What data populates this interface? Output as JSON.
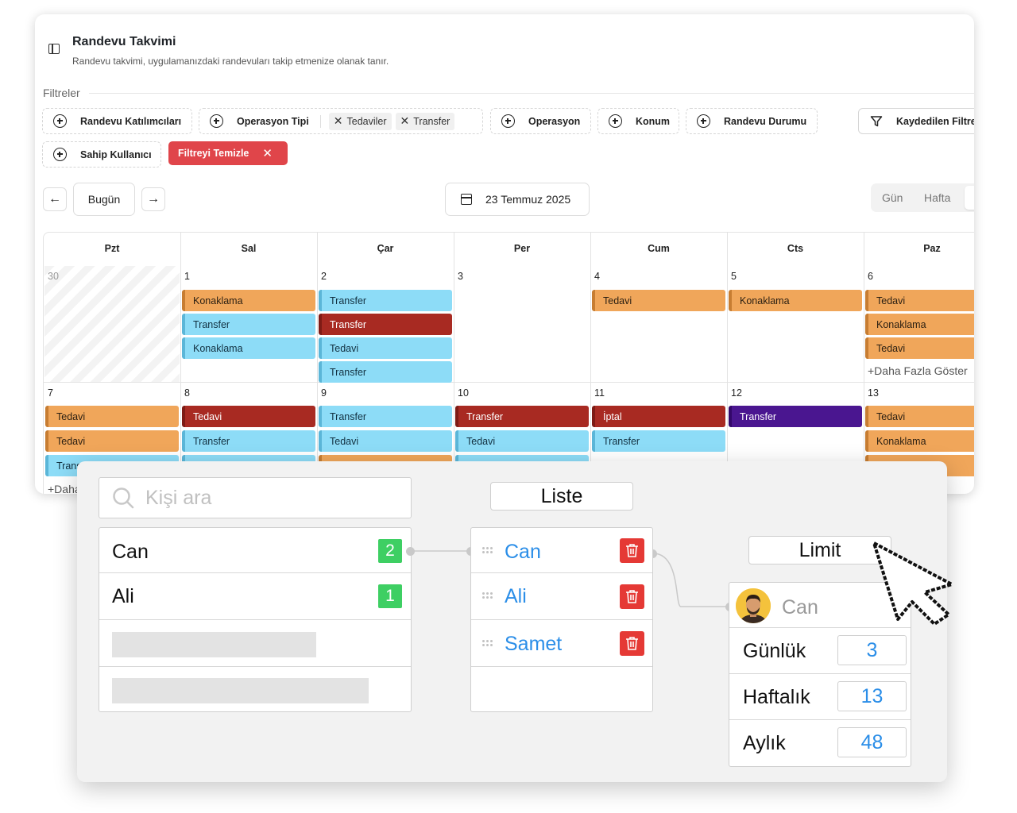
{
  "calendar": {
    "title": "Randevu Takvimi",
    "subtitle": "Randevu takvimi, uygulamanızdaki randevuları takip etmenize olanak tanır.",
    "filters_label": "Filtreler",
    "filters": {
      "participants": "Randevu Katılımcıları",
      "operation_type": "Operasyon Tipi",
      "operation_type_tags": [
        "Tedaviler",
        "Transfer"
      ],
      "operation": "Operasyon",
      "location": "Konum",
      "status": "Randevu Durumu",
      "saved_filters": "Kaydedilen Filtreler",
      "owner": "Sahip Kullanıcı",
      "clear": "Filtreyi Temizle"
    },
    "toolbar": {
      "today": "Bugün",
      "date": "23 Temmuz 2025",
      "views": [
        "Gün",
        "Hafta"
      ]
    },
    "weekdays": [
      "Pzt",
      "Sal",
      "Çar",
      "Per",
      "Cum",
      "Cts",
      "Paz"
    ],
    "weeks": [
      {
        "days": [
          {
            "num": "30",
            "muted": true,
            "events": []
          },
          {
            "num": "1",
            "events": [
              {
                "label": "Konaklama",
                "kind": "orange"
              },
              {
                "label": "Transfer",
                "kind": "blue"
              },
              {
                "label": "Konaklama",
                "kind": "blue"
              }
            ]
          },
          {
            "num": "2",
            "events": [
              {
                "label": "Transfer",
                "kind": "blue"
              },
              {
                "label": "Transfer",
                "kind": "red"
              },
              {
                "label": "Tedavi",
                "kind": "blue"
              },
              {
                "label": "Transfer",
                "kind": "blue"
              }
            ]
          },
          {
            "num": "3",
            "events": []
          },
          {
            "num": "4",
            "events": [
              {
                "label": "Tedavi",
                "kind": "orange"
              }
            ]
          },
          {
            "num": "5",
            "events": [
              {
                "label": "Konaklama",
                "kind": "orange"
              }
            ]
          },
          {
            "num": "6",
            "events": [
              {
                "label": "Tedavi",
                "kind": "orange"
              },
              {
                "label": "Konaklama",
                "kind": "orange"
              },
              {
                "label": "Tedavi",
                "kind": "orange"
              }
            ],
            "more": "+Daha Fazla Göster"
          }
        ]
      },
      {
        "days": [
          {
            "num": "7",
            "events": [
              {
                "label": "Tedavi",
                "kind": "orange"
              },
              {
                "label": "Tedavi",
                "kind": "orange"
              },
              {
                "label": "Trans",
                "kind": "blue"
              }
            ],
            "more": "+Daha"
          },
          {
            "num": "8",
            "events": [
              {
                "label": "Tedavi",
                "kind": "red"
              },
              {
                "label": "Transfer",
                "kind": "blue"
              },
              {
                "label": "",
                "kind": "blue"
              }
            ]
          },
          {
            "num": "9",
            "events": [
              {
                "label": "Transfer",
                "kind": "blue"
              },
              {
                "label": "Tedavi",
                "kind": "blue"
              },
              {
                "label": "",
                "kind": "orange"
              }
            ]
          },
          {
            "num": "10",
            "events": [
              {
                "label": "Transfer",
                "kind": "red"
              },
              {
                "label": "Tedavi",
                "kind": "blue"
              },
              {
                "label": "",
                "kind": "blue"
              }
            ]
          },
          {
            "num": "11",
            "events": [
              {
                "label": "İptal",
                "kind": "red"
              },
              {
                "label": "Transfer",
                "kind": "blue"
              }
            ]
          },
          {
            "num": "12",
            "events": [
              {
                "label": "Transfer",
                "kind": "purple"
              }
            ]
          },
          {
            "num": "13",
            "events": [
              {
                "label": "Tedavi",
                "kind": "orange"
              },
              {
                "label": "Konaklama",
                "kind": "orange"
              },
              {
                "label": "",
                "kind": "orange"
              }
            ]
          }
        ]
      }
    ]
  },
  "panel": {
    "search_placeholder": "Kişi ara",
    "people": [
      {
        "name": "Can",
        "count": "2"
      },
      {
        "name": "Ali",
        "count": "1"
      }
    ],
    "list_title": "Liste",
    "list": [
      "Can",
      "Ali",
      "Samet"
    ],
    "limit_title": "Limit",
    "limit_person": "Can",
    "limits": [
      {
        "label": "Günlük",
        "value": "3"
      },
      {
        "label": "Haftalık",
        "value": "13"
      },
      {
        "label": "Aylık",
        "value": "48"
      }
    ]
  }
}
